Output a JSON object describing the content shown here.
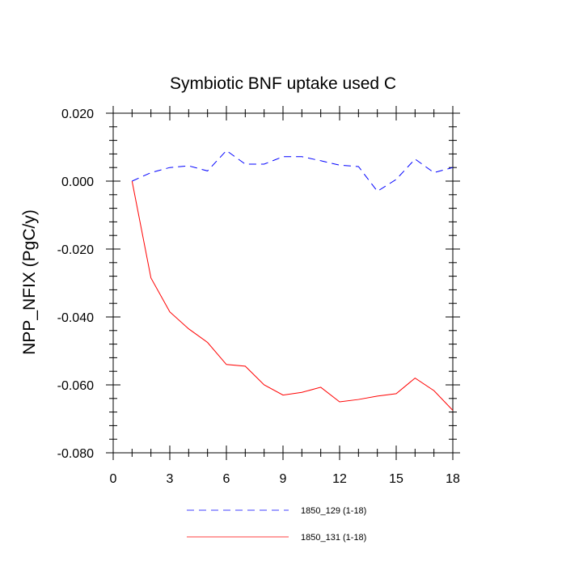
{
  "chart_data": {
    "type": "line",
    "title": "Symbiotic BNF uptake used C",
    "xlabel": "",
    "ylabel": "NPP_NFIX  (PgC/y)",
    "xlim": [
      0,
      18
    ],
    "ylim": [
      -0.08,
      0.02
    ],
    "x_ticks": [
      0,
      3,
      6,
      9,
      12,
      15,
      18
    ],
    "x_tick_labels": [
      "0",
      "3",
      "6",
      "9",
      "12",
      "15",
      "18"
    ],
    "y_ticks": [
      0.02,
      0.0,
      -0.02,
      -0.04,
      -0.06,
      -0.08
    ],
    "y_tick_labels": [
      "0.020",
      "0.000",
      "-0.020",
      "-0.040",
      "-0.060",
      "-0.080"
    ],
    "x_minor_step": 1,
    "y_minor_step": 0.004,
    "grid": false,
    "legend_position": "bottom",
    "x": [
      1,
      2,
      3,
      4,
      5,
      6,
      7,
      8,
      9,
      10,
      11,
      12,
      13,
      14,
      15,
      16,
      17,
      18
    ],
    "series": [
      {
        "name": "1850_129 (1-18)",
        "color": "#0000ff",
        "dash": "dashed",
        "values": [
          0.0,
          0.0025,
          0.004,
          0.0045,
          0.003,
          0.009,
          0.005,
          0.005,
          0.0072,
          0.0072,
          0.006,
          0.0047,
          0.0043,
          -0.003,
          0.0005,
          0.0065,
          0.0025,
          0.004
        ]
      },
      {
        "name": "1850_131 (1-18)",
        "color": "#ff0000",
        "dash": "solid",
        "values": [
          0.0,
          -0.0285,
          -0.0385,
          -0.0435,
          -0.0475,
          -0.054,
          -0.0545,
          -0.06,
          -0.063,
          -0.0622,
          -0.0607,
          -0.065,
          -0.0643,
          -0.0633,
          -0.0626,
          -0.058,
          -0.0617,
          -0.0675
        ]
      }
    ]
  }
}
